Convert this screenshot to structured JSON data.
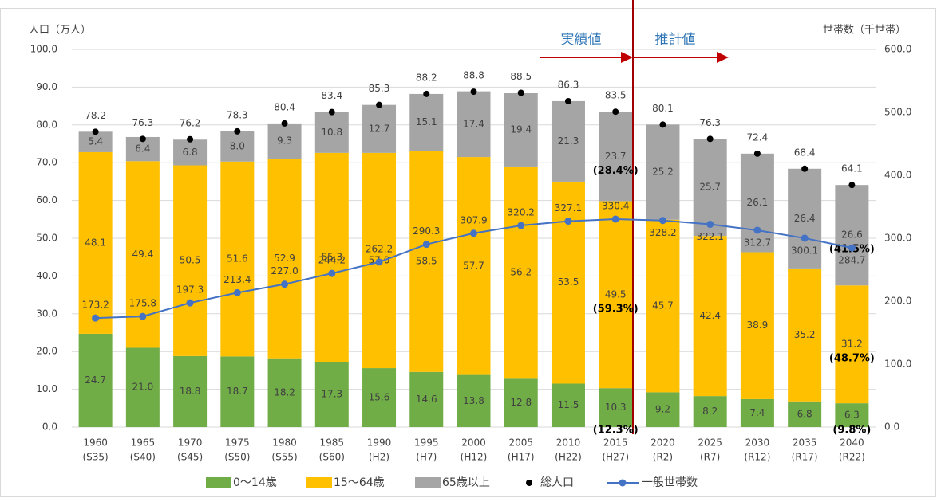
{
  "chart_data": {
    "type": "bar",
    "y_label": "人口（万人）",
    "y2_label": "世帯数（千世帯）",
    "annotations": [
      "実績値",
      "推計値"
    ],
    "categories": [
      [
        "1960",
        "(S35)"
      ],
      [
        "1965",
        "(S40)"
      ],
      [
        "1970",
        "(S45)"
      ],
      [
        "1975",
        "(S50)"
      ],
      [
        "1980",
        "(S55)"
      ],
      [
        "1985",
        "(S60)"
      ],
      [
        "1990",
        "(H2)"
      ],
      [
        "1995",
        "(H7)"
      ],
      [
        "2000",
        "(H12)"
      ],
      [
        "2005",
        "(H17)"
      ],
      [
        "2010",
        "(H22)"
      ],
      [
        "2015",
        "(H27)"
      ],
      [
        "2020",
        "(R2)"
      ],
      [
        "2025",
        "(R7)"
      ],
      [
        "2030",
        "(R12)"
      ],
      [
        "2035",
        "(R17)"
      ],
      [
        "2040",
        "(R22)"
      ]
    ],
    "ylim": [
      0,
      100
    ],
    "yticks": [
      {
        "value": 0,
        "label": "0.0"
      },
      {
        "value": 10,
        "label": "10.0"
      },
      {
        "value": 20,
        "label": "20.0"
      },
      {
        "value": 30,
        "label": "30.0"
      },
      {
        "value": 40,
        "label": "40.0"
      },
      {
        "value": 50,
        "label": "50.0"
      },
      {
        "value": 60,
        "label": "60.0"
      },
      {
        "value": 70,
        "label": "70.0"
      },
      {
        "value": 80,
        "label": "80.0"
      },
      {
        "value": 90,
        "label": "90.0"
      },
      {
        "value": 100,
        "label": "100.0"
      }
    ],
    "y2lim": [
      0,
      600
    ],
    "y2ticks": [
      {
        "value": 0,
        "label": "0.0"
      },
      {
        "value": 100,
        "label": "100.0"
      },
      {
        "value": 200,
        "label": "200.0"
      },
      {
        "value": 300,
        "label": "300.0"
      },
      {
        "value": 400,
        "label": "400.0"
      },
      {
        "value": 500,
        "label": "500.0"
      },
      {
        "value": 600,
        "label": "600.0"
      }
    ],
    "grid": true,
    "series": [
      {
        "name": "0〜14歳",
        "type": "bar",
        "color": "#70ad47",
        "values": [
          24.7,
          21.0,
          18.8,
          18.7,
          18.2,
          17.3,
          15.6,
          14.6,
          13.8,
          12.8,
          11.5,
          10.3,
          9.2,
          8.2,
          7.4,
          6.8,
          6.3
        ],
        "value_labels": [
          "24.7",
          "21.0",
          "18.8",
          "18.7",
          "18.2",
          "17.3",
          "15.6",
          "14.6",
          "13.8",
          "12.8",
          "11.5",
          "10.3",
          "9.2",
          "8.2",
          "7.4",
          "6.8",
          "6.3"
        ],
        "share_labels": [
          null,
          null,
          null,
          null,
          null,
          null,
          null,
          null,
          null,
          null,
          null,
          "(12.3%)",
          null,
          null,
          null,
          null,
          "(9.8%)"
        ]
      },
      {
        "name": "15〜64歳",
        "type": "bar",
        "color": "#ffc000",
        "values": [
          48.1,
          49.4,
          50.5,
          51.6,
          52.9,
          55.3,
          57.0,
          58.5,
          57.7,
          56.2,
          53.5,
          49.5,
          45.7,
          42.4,
          38.9,
          35.2,
          31.2
        ],
        "value_labels": [
          "48.1",
          "49.4",
          "50.5",
          "51.6",
          "52.9",
          "55.3",
          "57.0",
          "58.5",
          "57.7",
          "56.2",
          "53.5",
          "49.5",
          "45.7",
          "42.4",
          "38.9",
          "35.2",
          "31.2"
        ],
        "share_labels": [
          null,
          null,
          null,
          null,
          null,
          null,
          null,
          null,
          null,
          null,
          null,
          "(59.3%)",
          null,
          null,
          null,
          null,
          "(48.7%)"
        ]
      },
      {
        "name": "65歳以上",
        "type": "bar",
        "color": "#a5a5a5",
        "values": [
          5.4,
          6.4,
          6.8,
          8.0,
          9.3,
          10.8,
          12.7,
          15.1,
          17.4,
          19.4,
          21.3,
          23.7,
          25.2,
          25.7,
          26.1,
          26.4,
          26.6
        ],
        "value_labels": [
          "5.4",
          "6.4",
          "6.8",
          "8.0",
          "9.3",
          "10.8",
          "12.7",
          "15.1",
          "17.4",
          "19.4",
          "21.3",
          "23.7",
          "25.2",
          "25.7",
          "26.1",
          "26.4",
          "26.6"
        ],
        "share_labels": [
          null,
          null,
          null,
          null,
          null,
          null,
          null,
          null,
          null,
          null,
          null,
          "(28.4%)",
          null,
          null,
          null,
          null,
          "(41.5%)"
        ]
      },
      {
        "name": "総人口",
        "type": "dot",
        "color": "#000000",
        "values": [
          78.2,
          76.3,
          76.2,
          78.3,
          80.4,
          83.4,
          85.3,
          88.2,
          88.8,
          88.5,
          86.3,
          83.5,
          80.1,
          76.3,
          72.4,
          68.4,
          64.1
        ],
        "value_labels": [
          "78.2",
          "76.3",
          "76.2",
          "78.3",
          "80.4",
          "83.4",
          "85.3",
          "88.2",
          "88.8",
          "88.5",
          "86.3",
          "83.5",
          "80.1",
          "76.3",
          "72.4",
          "68.4",
          "64.1"
        ]
      },
      {
        "name": "一般世帯数",
        "type": "line",
        "axis": "y2",
        "color": "#4472c4",
        "values": [
          173.2,
          175.8,
          197.3,
          213.4,
          227.0,
          244.2,
          262.2,
          290.3,
          307.9,
          320.2,
          327.1,
          330.4,
          328.2,
          322.1,
          312.7,
          300.1,
          284.7
        ],
        "value_labels": [
          "173.2",
          "175.8",
          "197.3",
          "213.4",
          "227.0",
          "244.2",
          "262.2",
          "290.3",
          "307.9",
          "320.2",
          "327.1",
          "330.4",
          "328.2",
          "322.1",
          "312.7",
          "300.1",
          "284.7"
        ]
      }
    ]
  }
}
